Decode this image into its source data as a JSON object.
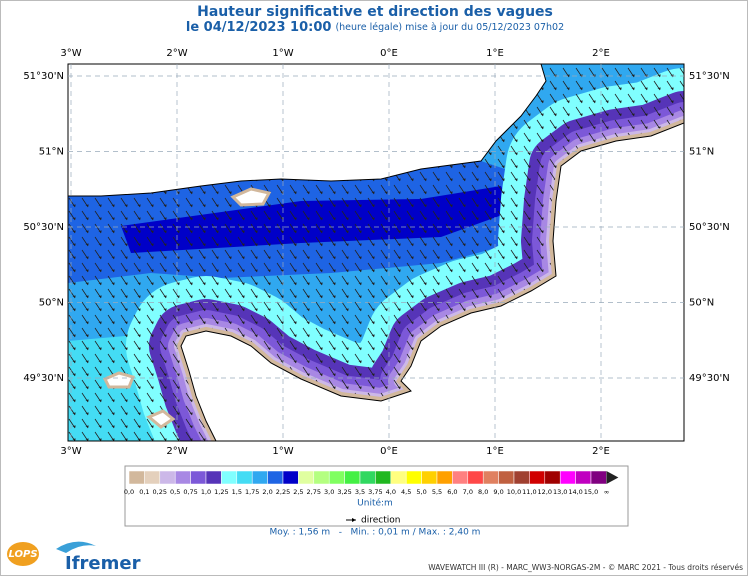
{
  "header": {
    "title": "Hauteur significative et direction des vagues",
    "date": "le 04/12/2023 10:00",
    "update": "(heure légale) mise à jour du 05/12/2023 07h02"
  },
  "map": {
    "lon_labels": [
      "3°W",
      "2°W",
      "1°W",
      "0°E",
      "1°E",
      "2°E"
    ],
    "lat_labels": [
      "51°30'N",
      "51°N",
      "50°30'N",
      "50°N",
      "49°30'N"
    ]
  },
  "legend": {
    "labels": [
      "0,0",
      "0,1",
      "0,25",
      "0,5",
      "0,75",
      "1,0",
      "1,25",
      "1,5",
      "1,75",
      "2,0",
      "2,25",
      "2,5",
      "2,75",
      "3,0",
      "3,25",
      "3,5",
      "3,75",
      "4,0",
      "4,5",
      "5,0",
      "5,5",
      "6,0",
      "7,0",
      "8,0",
      "9,0",
      "10,0",
      "11,0",
      "12,0",
      "13,0",
      "14,0",
      "15,0",
      "∞"
    ],
    "colors": [
      "#d2b89c",
      "#e4d0bc",
      "#ccb8e8",
      "#a888e4",
      "#7c58d8",
      "#5634b8",
      "#80ffff",
      "#44dcf4",
      "#30a8f0",
      "#1e64e4",
      "#0000c8",
      "#e0ffa0",
      "#b4ff80",
      "#80ff60",
      "#44f044",
      "#30d860",
      "#20b820",
      "#ffff80",
      "#ffff00",
      "#ffd000",
      "#ffa000",
      "#ff8080",
      "#ff4848",
      "#e08060",
      "#c06040",
      "#a04030",
      "#d00000",
      "#a00000",
      "#ff00ff",
      "#c000c0",
      "#800080"
    ],
    "unit": "Unité:m",
    "direction": "direction",
    "stats": "Moy. : 1,56 m   -   Min. : 0,01 m / Max. : 2,40 m"
  },
  "footer": {
    "logo_lops": "LOPS",
    "logo_ifremer": "Ifremer",
    "credits": "WAVEWATCH III (R) - MARC_WW3-NORGAS-2M - © MARC 2021 - Tous droits réservés"
  }
}
